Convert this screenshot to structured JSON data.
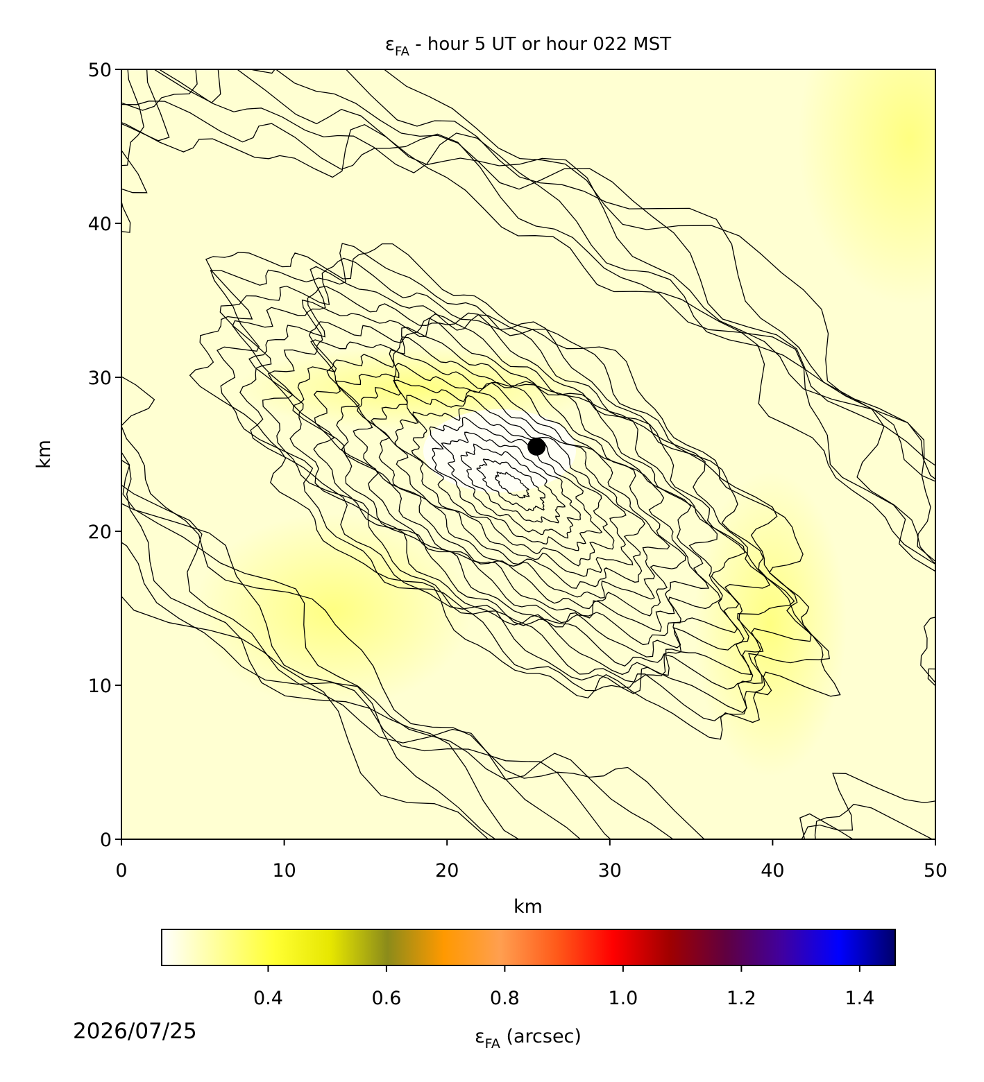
{
  "chart_data": {
    "type": "scatter",
    "title": {
      "symbol": "ε",
      "subscript": "FA",
      "text": " - hour 5 UT or hour 022 MST"
    },
    "xlabel": "km",
    "ylabel": "km",
    "xlim": [
      0,
      50
    ],
    "ylim": [
      0,
      50
    ],
    "xticks": [
      0,
      10,
      20,
      30,
      40,
      50
    ],
    "yticks": [
      0,
      10,
      20,
      30,
      40,
      50
    ],
    "points": {
      "x": [
        25.5
      ],
      "y": [
        25.5
      ],
      "color": "#000000"
    },
    "colorbar": {
      "label": {
        "symbol": "ε",
        "subscript": "FA",
        "text": " (arcsec)"
      },
      "clim": [
        0.22,
        1.46
      ],
      "ticks": [
        0.4,
        0.6,
        0.8,
        {
          "value": 1,
          "label": "1.0"
        },
        1.2,
        1.4
      ],
      "colors": [
        "#ffffff",
        "#ffff99",
        "#ffff33",
        "#e6e600",
        "#8b8b1a",
        "#ff9900",
        "#ff9f50",
        "#ff5a1a",
        "#ff0000",
        "#a00000",
        "#600040",
        "#4000a0",
        "#0000ff",
        "#00006a"
      ]
    },
    "date": "2026/07/25"
  }
}
